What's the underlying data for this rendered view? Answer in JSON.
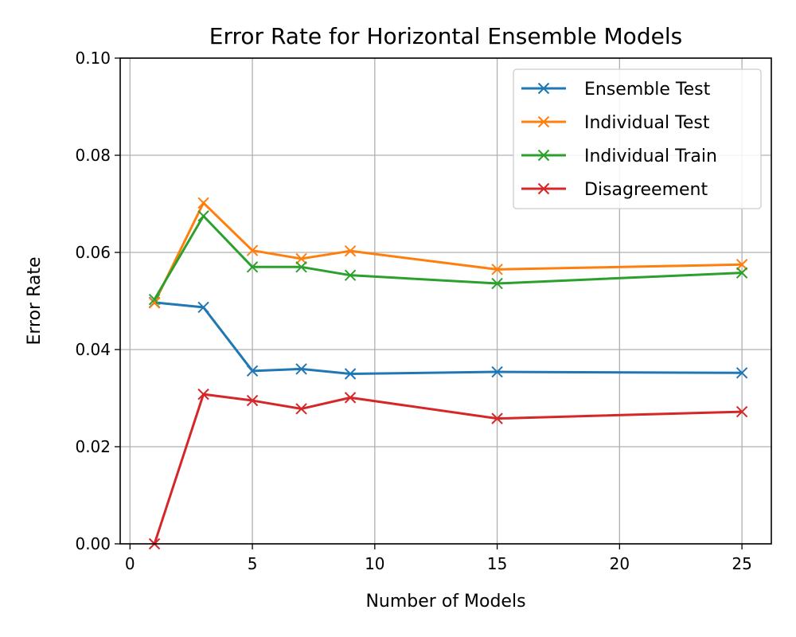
{
  "chart_data": {
    "type": "line",
    "title": "Error Rate for Horizontal Ensemble Models",
    "xlabel": "Number of Models",
    "ylabel": "Error Rate",
    "xlim": [
      -0.4,
      26.2
    ],
    "ylim": [
      0.0,
      0.1
    ],
    "xticks": [
      0,
      5,
      10,
      15,
      20,
      25
    ],
    "xtick_labels": [
      "0",
      "5",
      "10",
      "15",
      "20",
      "25"
    ],
    "yticks": [
      0.0,
      0.02,
      0.04,
      0.06,
      0.08,
      0.1
    ],
    "ytick_labels": [
      "0.00",
      "0.02",
      "0.04",
      "0.06",
      "0.08",
      "0.10"
    ],
    "grid": true,
    "legend_position": "top-right",
    "marker": "x",
    "x": [
      1,
      3,
      5,
      7,
      9,
      15,
      25
    ],
    "series": [
      {
        "name": "Ensemble Test",
        "color": "#1f77b4",
        "values": [
          0.0497,
          0.0487,
          0.0356,
          0.036,
          0.035,
          0.0354,
          0.0352
        ]
      },
      {
        "name": "Individual Test",
        "color": "#ff7f0e",
        "values": [
          0.0496,
          0.0702,
          0.0604,
          0.0587,
          0.0603,
          0.0565,
          0.0575
        ]
      },
      {
        "name": "Individual Train",
        "color": "#2ca02c",
        "values": [
          0.0503,
          0.0675,
          0.057,
          0.057,
          0.0553,
          0.0536,
          0.0558
        ]
      },
      {
        "name": "Disagreement",
        "color": "#d62728",
        "values": [
          0.0,
          0.0308,
          0.0295,
          0.0278,
          0.0301,
          0.0258,
          0.0272
        ]
      }
    ]
  }
}
